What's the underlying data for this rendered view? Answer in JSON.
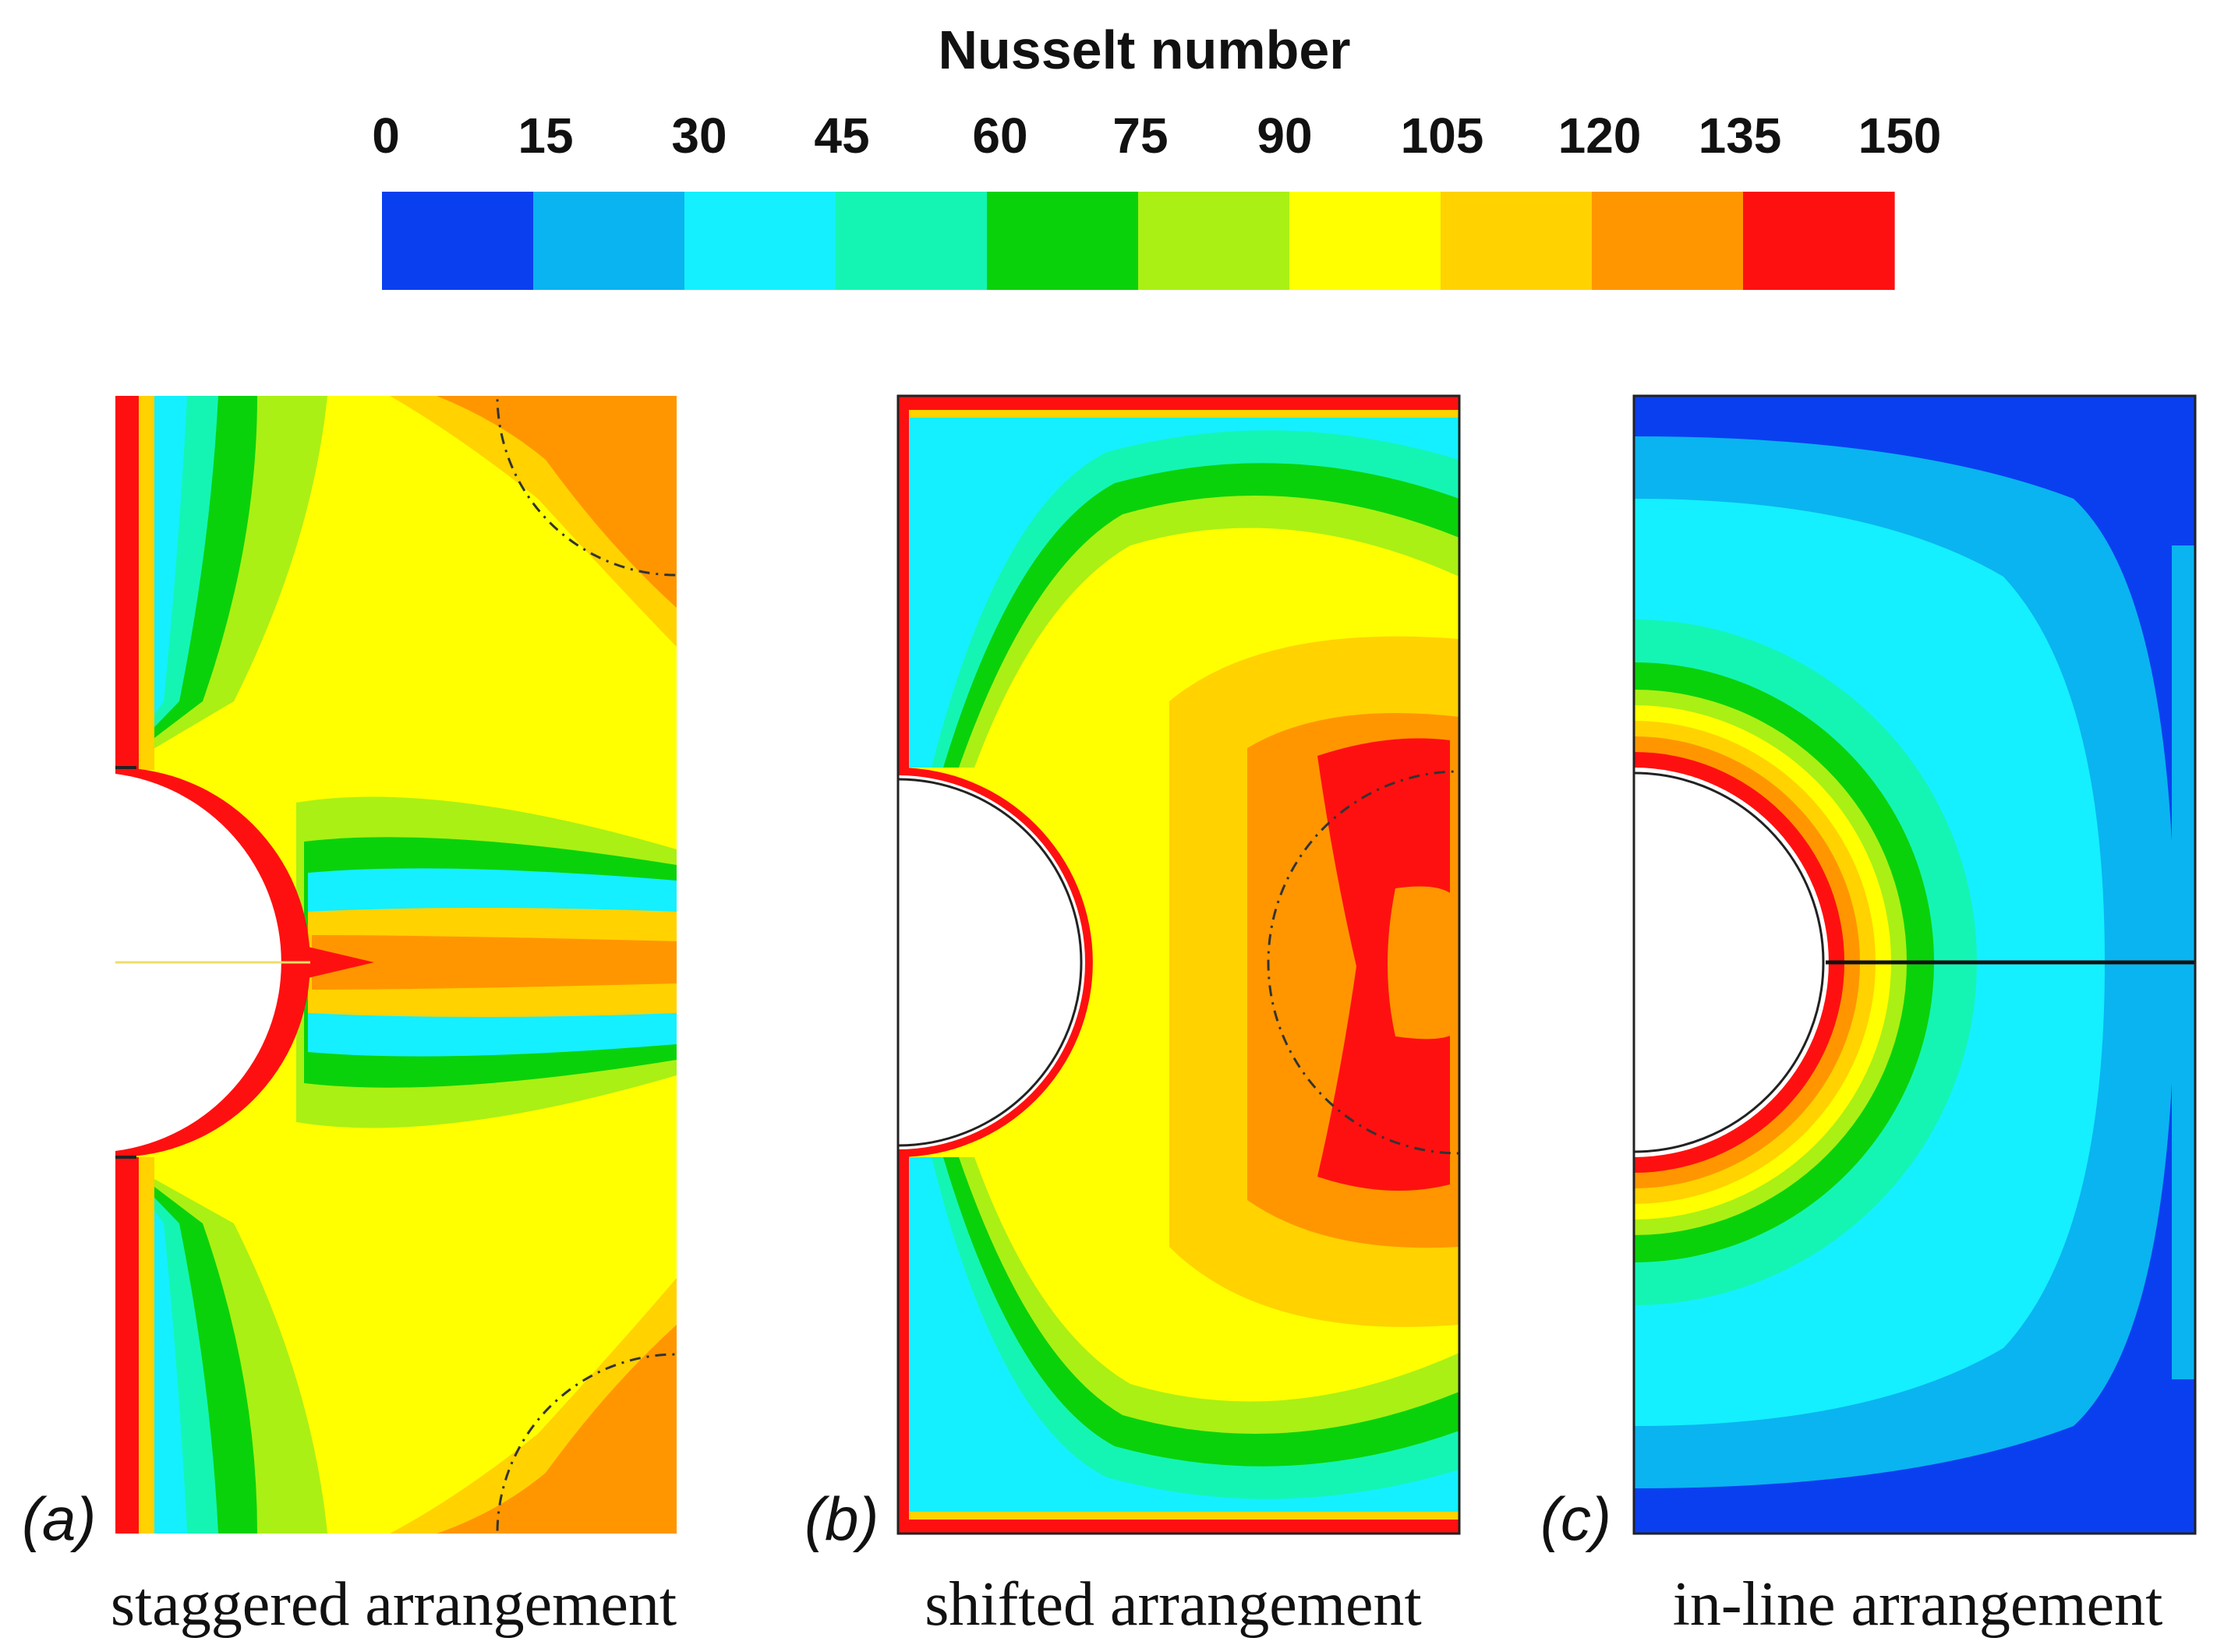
{
  "chart_data": {
    "type": "heatmap",
    "title": "Nusselt number",
    "colorbar": {
      "ticks": [
        "0",
        "15",
        "30",
        "45",
        "60",
        "75",
        "90",
        "105",
        "120",
        "135",
        "150"
      ],
      "min": 0,
      "max": 150,
      "step": 15,
      "colors": [
        "#0a3ff0",
        "#0ab4f0",
        "#14f0ff",
        "#14f5b4",
        "#0ad20a",
        "#aaf014",
        "#ffff00",
        "#ffd200",
        "#ff9600",
        "#ff1010"
      ]
    },
    "panels": [
      {
        "tag_open": "(",
        "tag_letter": "a",
        "tag_close": ")",
        "caption": "staggered arrangement"
      },
      {
        "tag_open": "(",
        "tag_letter": "b",
        "tag_close": ")",
        "caption": "shifted arrangement"
      },
      {
        "tag_open": "(",
        "tag_letter": "c",
        "tag_close": ")",
        "caption": "in-line arrangement"
      }
    ]
  }
}
